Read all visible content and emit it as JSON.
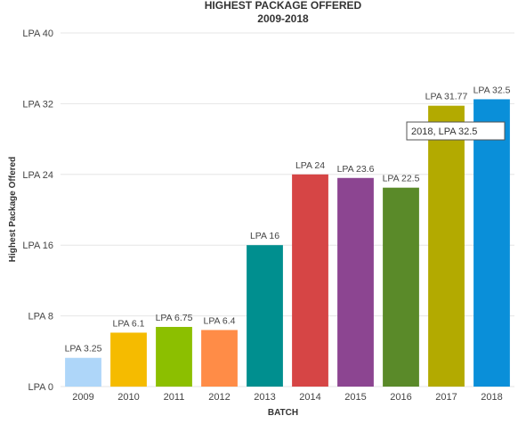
{
  "chart_data": {
    "type": "bar",
    "title": "HIGHEST PACKAGE OFFERED",
    "subtitle": "2009-2018",
    "xlabel": "BATCH",
    "ylabel": "Highest Package Offered",
    "categories": [
      "2009",
      "2010",
      "2011",
      "2012",
      "2013",
      "2014",
      "2015",
      "2016",
      "2017",
      "2018"
    ],
    "values": [
      3.25,
      6.1,
      6.75,
      6.4,
      16,
      24,
      23.6,
      22.5,
      31.77,
      32.5
    ],
    "data_labels": [
      "LPA 3.25",
      "LPA 6.1",
      "LPA 6.75",
      "LPA 6.4",
      "LPA 16",
      "LPA 24",
      "LPA 23.6",
      "LPA 22.5",
      "LPA 31.77",
      "LPA 32.5"
    ],
    "colors": [
      "#aed6f9",
      "#f5bb00",
      "#8cbf00",
      "#ff8c47",
      "#008f8f",
      "#d64545",
      "#8c4591",
      "#5a8a29",
      "#b3aa00",
      "#0a8fd9"
    ],
    "ylim": [
      0,
      40
    ],
    "yticks": [
      0,
      8,
      16,
      24,
      32,
      40
    ],
    "ytick_labels": [
      "LPA 0",
      "LPA 8",
      "LPA 16",
      "LPA 24",
      "LPA 32",
      "LPA 40"
    ],
    "grid": true,
    "tooltip": "2018, LPA 32.5"
  }
}
